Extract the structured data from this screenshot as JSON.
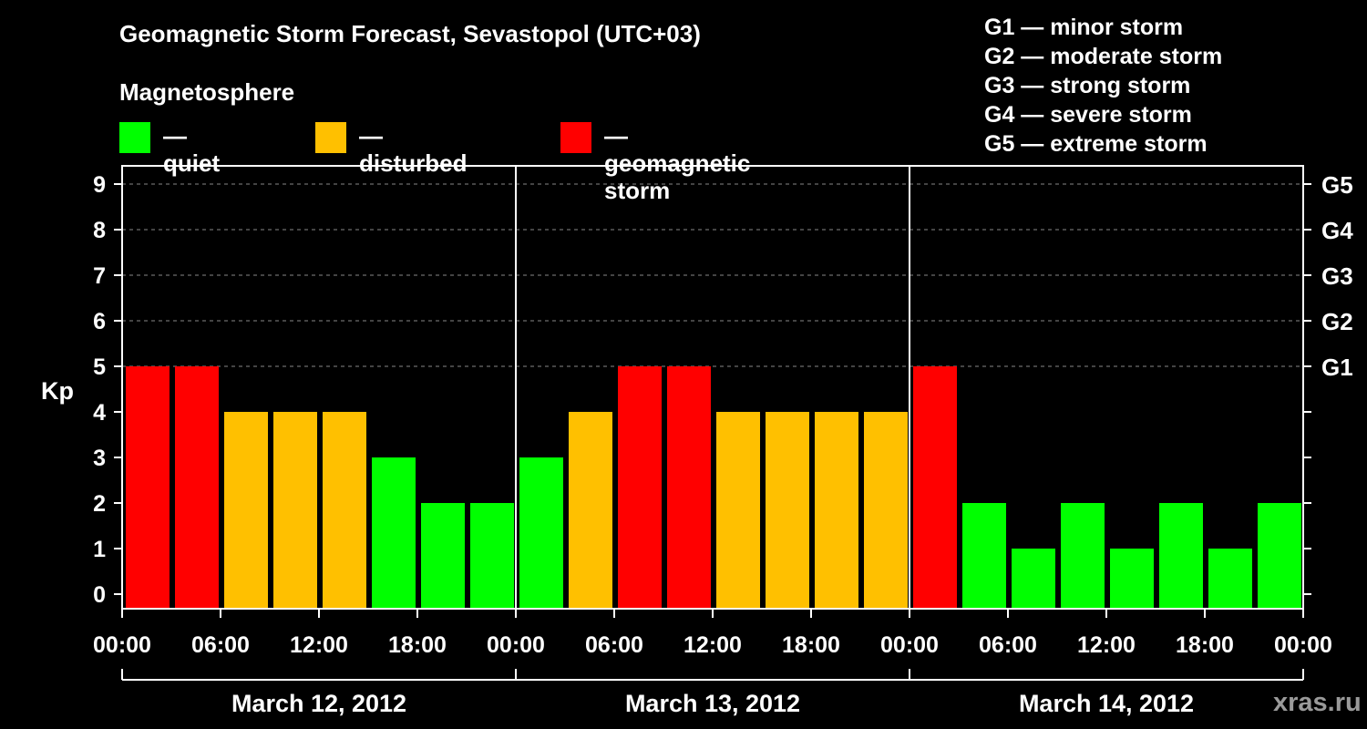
{
  "title": "Geomagnetic Storm Forecast, Sevastopol (UTC+03)",
  "magnetosphere_label": "Magnetosphere",
  "legend": [
    {
      "label": "— quiet",
      "color": "#00ff00"
    },
    {
      "label": "— disturbed",
      "color": "#ffc000"
    },
    {
      "label": "— geomagnetic storm",
      "color": "#ff0000"
    }
  ],
  "storm_levels": [
    "G1 — minor storm",
    "G2 — moderate storm",
    "G3 — strong storm",
    "G4 — severe storm",
    "G5 — extreme storm"
  ],
  "watermark": "xras.ru",
  "chart_data": {
    "type": "bar",
    "ylabel": "Kp",
    "ylim": [
      0,
      9
    ],
    "yticks": [
      "0",
      "1",
      "2",
      "3",
      "4",
      "5",
      "6",
      "7",
      "8",
      "9"
    ],
    "right_ticks": [
      {
        "kp": 5,
        "label": "G1"
      },
      {
        "kp": 6,
        "label": "G2"
      },
      {
        "kp": 7,
        "label": "G3"
      },
      {
        "kp": 8,
        "label": "G4"
      },
      {
        "kp": 9,
        "label": "G5"
      }
    ],
    "grid": "dashed horizontal at Kp 5-9",
    "xtick_labels": [
      "00:00",
      "06:00",
      "12:00",
      "18:00",
      "00:00",
      "06:00",
      "12:00",
      "18:00",
      "00:00",
      "06:00",
      "12:00",
      "18:00",
      "00:00"
    ],
    "days": [
      "March 12, 2012",
      "March 13, 2012",
      "March 14, 2012"
    ],
    "interval_hours": 3,
    "values": [
      5,
      5,
      4,
      4,
      4,
      3,
      2,
      2,
      3,
      4,
      5,
      5,
      4,
      4,
      4,
      4,
      5,
      2,
      1,
      2,
      1,
      2,
      1,
      2
    ],
    "color_rule": {
      "quiet": "Kp 0-3",
      "disturbed": "Kp 4",
      "geomagnetic storm": "Kp 5+"
    },
    "colors": {
      "quiet": "#00ff00",
      "disturbed": "#ffc000",
      "storm": "#ff0000",
      "axis": "#ffffff",
      "grid": "#888888"
    }
  }
}
